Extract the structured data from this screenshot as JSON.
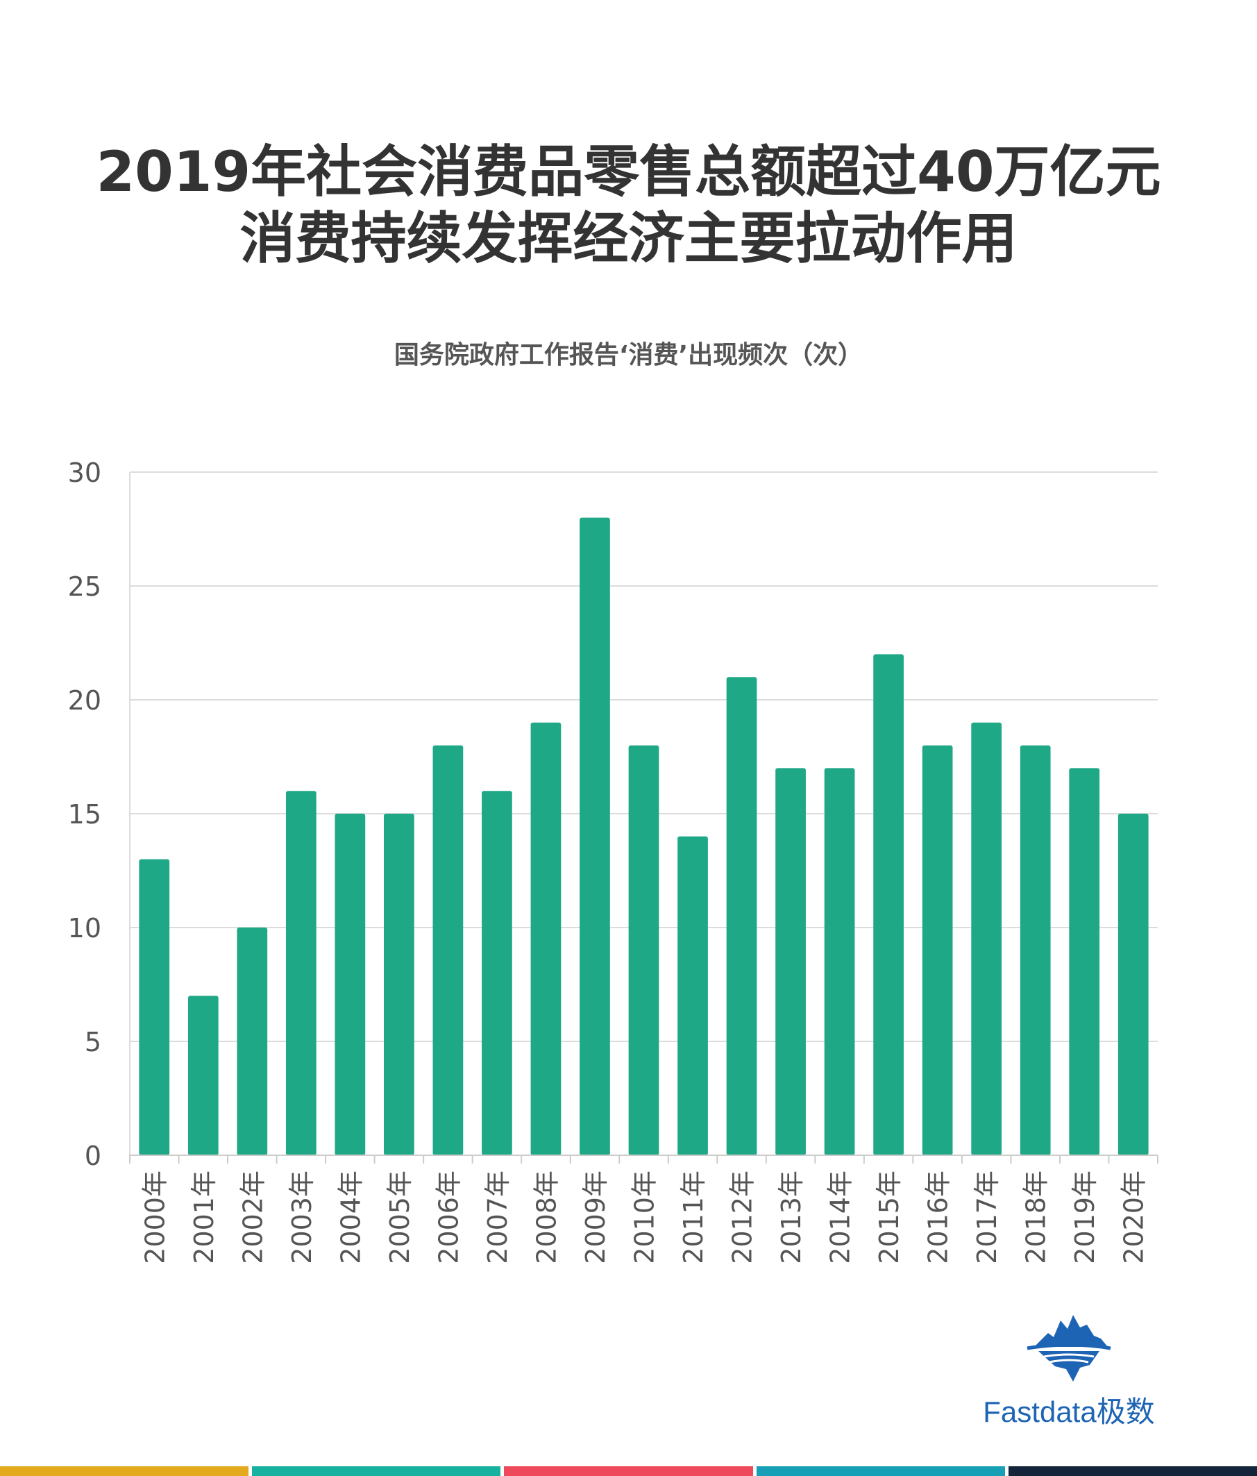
{
  "title_line1": "2019年社会消费品零售总额超过40万亿元",
  "title_line2": "消费持续发挥经济主要拉动作用",
  "chart_data": {
    "type": "bar",
    "title": "国务院政府工作报告‘消费’出现频次（次）",
    "categories": [
      "2000年",
      "2001年",
      "2002年",
      "2003年",
      "2004年",
      "2005年",
      "2006年",
      "2007年",
      "2008年",
      "2009年",
      "2010年",
      "2011年",
      "2012年",
      "2013年",
      "2014年",
      "2015年",
      "2016年",
      "2017年",
      "2018年",
      "2019年",
      "2020年"
    ],
    "values": [
      13,
      7,
      10,
      16,
      15,
      15,
      18,
      16,
      19,
      28,
      18,
      14,
      21,
      17,
      17,
      22,
      18,
      19,
      18,
      17,
      15
    ],
    "yticks": [
      "0",
      "5",
      "10",
      "15",
      "20",
      "25",
      "30"
    ],
    "ylim": [
      0,
      30
    ],
    "grid": true,
    "bar_color": "#1fa886"
  },
  "logo": {
    "text": "Fastdata极数",
    "color": "#1e64b4"
  },
  "footer_colors": [
    "#e3aa1f",
    "#17b19f",
    "#ef4a5b",
    "#169fb5",
    "#14243a"
  ]
}
